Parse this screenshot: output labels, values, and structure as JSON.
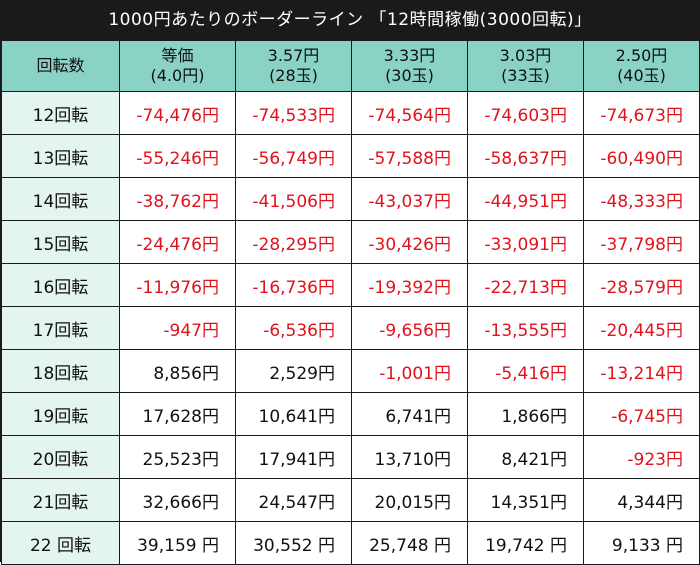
{
  "title": "1000円あたりのボーダーライン 「12時間稼働(3000回転)」",
  "header": {
    "row_label": "回転数",
    "columns": [
      {
        "line1": "等価",
        "line2": "(4.0円)"
      },
      {
        "line1": "3.57円",
        "line2": "(28玉)"
      },
      {
        "line1": "3.33円",
        "line2": "(30玉)"
      },
      {
        "line1": "3.03円",
        "line2": "(33玉)"
      },
      {
        "line1": "2.50円",
        "line2": "(40玉)"
      }
    ]
  },
  "rows": [
    {
      "label": "12回転",
      "cells": [
        {
          "text": "-74,476円",
          "negative": true
        },
        {
          "text": "-74,533円",
          "negative": true
        },
        {
          "text": "-74,564円",
          "negative": true
        },
        {
          "text": "-74,603円",
          "negative": true
        },
        {
          "text": "-74,673円",
          "negative": true
        }
      ]
    },
    {
      "label": "13回転",
      "cells": [
        {
          "text": "-55,246円",
          "negative": true
        },
        {
          "text": "-56,749円",
          "negative": true
        },
        {
          "text": "-57,588円",
          "negative": true
        },
        {
          "text": "-58,637円",
          "negative": true
        },
        {
          "text": "-60,490円",
          "negative": true
        }
      ]
    },
    {
      "label": "14回転",
      "cells": [
        {
          "text": "-38,762円",
          "negative": true
        },
        {
          "text": "-41,506円",
          "negative": true
        },
        {
          "text": "-43,037円",
          "negative": true
        },
        {
          "text": "-44,951円",
          "negative": true
        },
        {
          "text": "-48,333円",
          "negative": true
        }
      ]
    },
    {
      "label": "15回転",
      "cells": [
        {
          "text": "-24,476円",
          "negative": true
        },
        {
          "text": "-28,295円",
          "negative": true
        },
        {
          "text": "-30,426円",
          "negative": true
        },
        {
          "text": "-33,091円",
          "negative": true
        },
        {
          "text": "-37,798円",
          "negative": true
        }
      ]
    },
    {
      "label": "16回転",
      "cells": [
        {
          "text": "-11,976円",
          "negative": true
        },
        {
          "text": "-16,736円",
          "negative": true
        },
        {
          "text": "-19,392円",
          "negative": true
        },
        {
          "text": "-22,713円",
          "negative": true
        },
        {
          "text": "-28,579円",
          "negative": true
        }
      ]
    },
    {
      "label": "17回転",
      "cells": [
        {
          "text": "-947円",
          "negative": true
        },
        {
          "text": "-6,536円",
          "negative": true
        },
        {
          "text": "-9,656円",
          "negative": true
        },
        {
          "text": "-13,555円",
          "negative": true
        },
        {
          "text": "-20,445円",
          "negative": true
        }
      ]
    },
    {
      "label": "18回転",
      "cells": [
        {
          "text": "8,856円",
          "negative": false
        },
        {
          "text": "2,529円",
          "negative": false
        },
        {
          "text": "-1,001円",
          "negative": true
        },
        {
          "text": "-5,416円",
          "negative": true
        },
        {
          "text": "-13,214円",
          "negative": true
        }
      ]
    },
    {
      "label": "19回転",
      "cells": [
        {
          "text": "17,628円",
          "negative": false
        },
        {
          "text": "10,641円",
          "negative": false
        },
        {
          "text": "6,741円",
          "negative": false
        },
        {
          "text": "1,866円",
          "negative": false
        },
        {
          "text": "-6,745円",
          "negative": true
        }
      ]
    },
    {
      "label": "20回転",
      "cells": [
        {
          "text": "25,523円",
          "negative": false
        },
        {
          "text": "17,941円",
          "negative": false
        },
        {
          "text": "13,710円",
          "negative": false
        },
        {
          "text": "8,421円",
          "negative": false
        },
        {
          "text": "-923円",
          "negative": true
        }
      ]
    },
    {
      "label": "21回転",
      "cells": [
        {
          "text": "32,666円",
          "negative": false
        },
        {
          "text": "24,547円",
          "negative": false
        },
        {
          "text": "20,015円",
          "negative": false
        },
        {
          "text": "14,351円",
          "negative": false
        },
        {
          "text": "4,344円",
          "negative": false
        }
      ]
    },
    {
      "label": "22 回転",
      "cells": [
        {
          "text": "39,159 円",
          "negative": false
        },
        {
          "text": "30,552 円",
          "negative": false
        },
        {
          "text": "25,748 円",
          "negative": false
        },
        {
          "text": "19,742 円",
          "negative": false
        },
        {
          "text": "9,133 円",
          "negative": false
        }
      ]
    }
  ],
  "colors": {
    "header_bg": "#8ad2c3",
    "row_label_bg": "#e4f4f1",
    "negative_text": "#e0121c",
    "frame": "#1a1a1a"
  }
}
